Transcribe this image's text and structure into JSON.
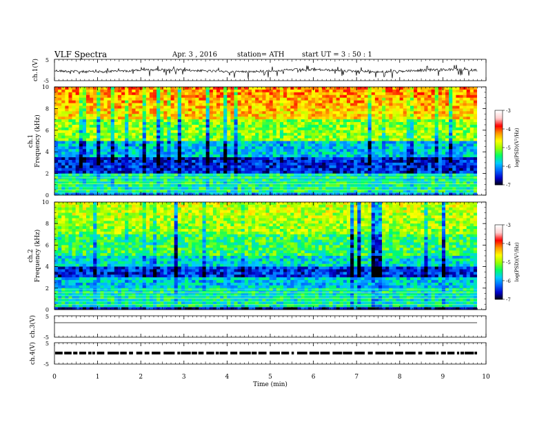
{
  "header": {
    "title": "VLF  Spectra",
    "date": "Apr. 3  , 2016",
    "station": "station= ATH",
    "start": "start  UT  =   3  : 50 : 1"
  },
  "chart_data": [
    {
      "type": "line",
      "panel": "ch1-waveform",
      "ylabel": "ch.1(V)",
      "yticks": [
        "5",
        "-5"
      ],
      "ylim": [
        -5,
        5
      ],
      "xlim": [
        0,
        10
      ],
      "description_values": {
        "mean_level": 0.3,
        "spikes": true
      }
    },
    {
      "type": "heatmap",
      "panel": "ch1-spectrogram",
      "ylabel": "ch.1\nFrequency  (kHz)",
      "ylabel_lines": [
        "ch.1",
        "Frequency  (kHz)"
      ],
      "yticks": [
        "0",
        "2",
        "4",
        "6",
        "8",
        "10"
      ],
      "ylim": [
        0,
        10
      ],
      "xlim": [
        0,
        10
      ],
      "colorbar": {
        "label": "log(PSD)(V²/Hz)",
        "ticks": [
          "-3",
          "-4",
          "-5",
          "-6",
          "-7"
        ],
        "range": [
          -7,
          -3
        ],
        "colors": [
          "#000000",
          "#0000cc",
          "#0066ff",
          "#00ccff",
          "#00ff66",
          "#99ff00",
          "#ffff00",
          "#ff9900",
          "#ff0000",
          "#ffcccc",
          "#ffffff"
        ]
      }
    },
    {
      "type": "heatmap",
      "panel": "ch2-spectrogram",
      "ylabel_lines": [
        "ch.2",
        "Frequency  (kHz)"
      ],
      "yticks": [
        "0",
        "2",
        "4",
        "6",
        "8",
        "10"
      ],
      "ylim": [
        0,
        10
      ],
      "xlim": [
        0,
        10
      ],
      "colorbar": {
        "label": "log(PSD)(V²/Hz)",
        "ticks": [
          "-3",
          "-4",
          "-5",
          "-6",
          "-7"
        ],
        "range": [
          -7,
          -3
        ]
      }
    },
    {
      "type": "line",
      "panel": "ch3-waveform",
      "ylabel": "ch.3(V)",
      "yticks": [
        "5",
        "-5"
      ],
      "ylim": [
        -5,
        5
      ],
      "xlim": [
        0,
        10
      ],
      "description_values": {
        "mean_level": 0
      }
    },
    {
      "type": "line",
      "panel": "ch4-waveform",
      "ylabel": "ch.4(V)",
      "yticks": [
        "5",
        "-5"
      ],
      "ylim": [
        -5,
        5
      ],
      "xlim": [
        0,
        10
      ],
      "description_values": {
        "mean_level": 0
      }
    }
  ],
  "xaxis": {
    "label": "Time  (min)",
    "ticks": [
      "0",
      "1",
      "2",
      "3",
      "4",
      "5",
      "6",
      "7",
      "8",
      "9",
      "10"
    ],
    "range": [
      0,
      10
    ]
  }
}
